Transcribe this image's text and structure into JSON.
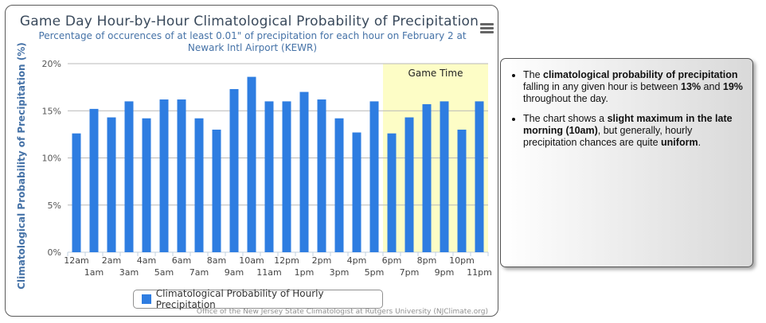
{
  "chart": {
    "title": "Game Day Hour-by-Hour Climatological Probability of Precipitation",
    "subtitle": "Percentage of occurences of at least 0.01\" of precipitation for each hour on February 2 at Newark Intl Airport (KEWR)",
    "menu_icon": "hamburger-menu-icon",
    "credits": "Office of the New Jersey State Climatologist at Rutgers University (NJClimate.org)"
  },
  "chart_data": {
    "type": "bar",
    "categories": [
      "12am",
      "1am",
      "2am",
      "3am",
      "4am",
      "5am",
      "6am",
      "7am",
      "8am",
      "9am",
      "10am",
      "11am",
      "12pm",
      "1pm",
      "2pm",
      "3pm",
      "4pm",
      "5pm",
      "6pm",
      "7pm",
      "8pm",
      "9pm",
      "10pm",
      "11pm"
    ],
    "series": [
      {
        "name": "Climatological Probability of Hourly Precipitation",
        "color": "#2e7de1",
        "values": [
          12.6,
          15.2,
          14.3,
          16.0,
          14.2,
          16.2,
          16.2,
          14.2,
          13.0,
          17.3,
          18.6,
          16.0,
          16.0,
          17.0,
          16.2,
          14.2,
          12.7,
          16.0,
          12.6,
          14.3,
          15.7,
          16.0,
          13.0,
          16.0
        ]
      }
    ],
    "ylabel": "Climatological Probability of Precipitation (%)",
    "ylim": [
      0,
      20
    ],
    "yticks": [
      0,
      5,
      10,
      15,
      20
    ],
    "ytick_labels": [
      "0%",
      "5%",
      "10%",
      "15%",
      "20%"
    ],
    "grid": true,
    "legend": "bottom-center",
    "plot_band": {
      "from": "6pm",
      "to": "11pm",
      "label": "Game Time",
      "color": "#fdfdc6"
    }
  },
  "info": {
    "bullet1": {
      "a": "The ",
      "b": "climatological probability of precipitation",
      "c": " falling in any given hour is between ",
      "d": "13%",
      "e": " and ",
      "f": "19%",
      "g": " throughout the day."
    },
    "bullet2": {
      "a": "The chart shows a ",
      "b": "slight maximum in the late morning (10am)",
      "c": ", but generally, hourly precipitation chances are quite ",
      "d": "uniform",
      "e": "."
    }
  }
}
